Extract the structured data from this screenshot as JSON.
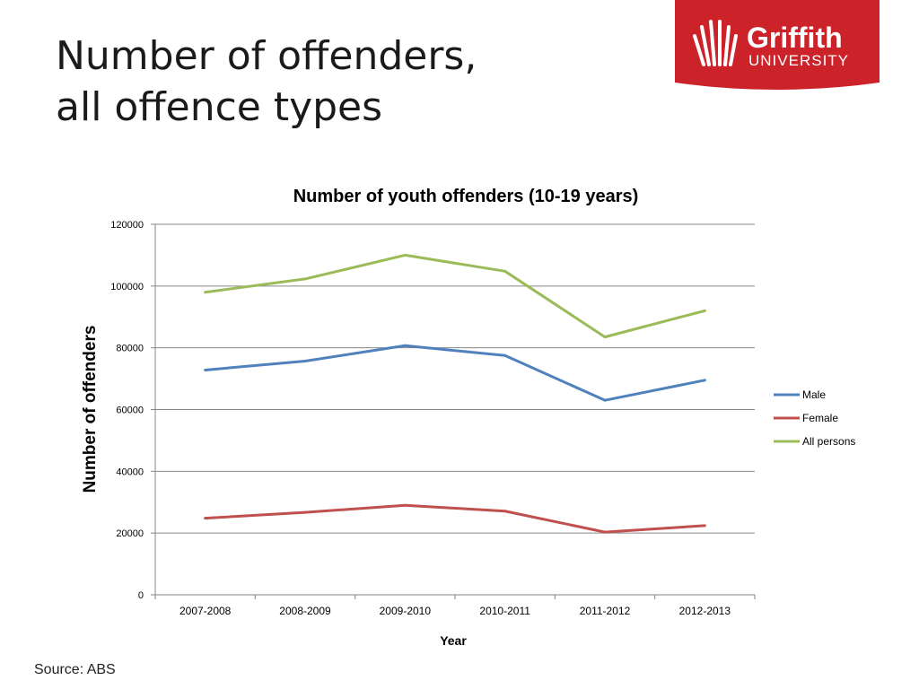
{
  "slide": {
    "title_lines": [
      "Number of offenders,",
      "all offence types"
    ],
    "source": "Source: ABS"
  },
  "logo": {
    "name": "Griffith",
    "subtitle": "UNIVERSITY",
    "bg_color": "#cc2229"
  },
  "chart_data": {
    "type": "line",
    "title": "Number of youth offenders (10-19 years)",
    "xlabel": "Year",
    "ylabel": "Number of offenders",
    "categories": [
      "2007-2008",
      "2008-2009",
      "2009-2010",
      "2010-2011",
      "2011-2012",
      "2012-2013"
    ],
    "ylim": [
      0,
      120000
    ],
    "yticks": [
      0,
      20000,
      40000,
      60000,
      80000,
      100000,
      120000
    ],
    "grid": true,
    "legend_position": "right",
    "series": [
      {
        "name": "Male",
        "color": "#4f81bd",
        "values": [
          72800,
          75700,
          80700,
          77500,
          63000,
          69500
        ]
      },
      {
        "name": "Female",
        "color": "#c0504d",
        "values": [
          24800,
          26700,
          29000,
          27100,
          20300,
          22400
        ]
      },
      {
        "name": "All persons",
        "color": "#9bbb59",
        "values": [
          98000,
          102300,
          110000,
          104800,
          83500,
          92000
        ]
      }
    ]
  }
}
